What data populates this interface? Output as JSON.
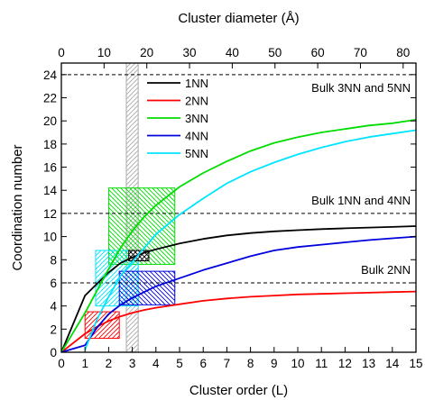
{
  "chart_data": {
    "type": "line",
    "xlabel": "Cluster order (L)",
    "ylabel": "Coordination number",
    "x2label": "Cluster diameter (Å)",
    "xlim": [
      0,
      15
    ],
    "ylim": [
      0,
      25
    ],
    "x2lim": [
      0,
      83
    ],
    "xticks": [
      0,
      1,
      2,
      3,
      4,
      5,
      6,
      7,
      8,
      9,
      10,
      11,
      12,
      13,
      14,
      15
    ],
    "yticks": [
      0,
      2,
      4,
      6,
      8,
      10,
      12,
      14,
      16,
      18,
      20,
      22,
      24
    ],
    "x2ticks": [
      0,
      10,
      20,
      30,
      40,
      50,
      60,
      70,
      80
    ],
    "grid": false,
    "legend_position": "top-center",
    "series": [
      {
        "name": "1NN",
        "color": "#000000",
        "x": [
          0,
          1,
          1.5,
          2,
          2.5,
          3,
          3.5,
          4,
          5,
          6,
          7,
          8,
          9,
          10,
          11,
          12,
          13,
          14,
          15
        ],
        "y": [
          0,
          4.9,
          5.9,
          6.9,
          7.7,
          8.2,
          8.6,
          8.9,
          9.4,
          9.8,
          10.1,
          10.3,
          10.45,
          10.55,
          10.65,
          10.72,
          10.78,
          10.83,
          10.9
        ]
      },
      {
        "name": "2NN",
        "color": "#ff0000",
        "x": [
          0,
          1,
          1.5,
          2,
          2.5,
          3,
          3.5,
          4,
          5,
          6,
          7,
          8,
          9,
          10,
          11,
          12,
          13,
          14,
          15
        ],
        "y": [
          0,
          1.6,
          2.2,
          2.7,
          3.1,
          3.4,
          3.65,
          3.85,
          4.15,
          4.45,
          4.65,
          4.8,
          4.9,
          5.0,
          5.05,
          5.1,
          5.15,
          5.2,
          5.25
        ]
      },
      {
        "name": "3NN",
        "color": "#00dd00",
        "x": [
          0,
          1,
          1.5,
          2,
          2.5,
          3,
          3.5,
          4,
          5,
          6,
          7,
          8,
          9,
          10,
          11,
          12,
          13,
          14,
          15
        ],
        "y": [
          0,
          3.4,
          5.3,
          7.2,
          9.0,
          10.5,
          11.7,
          12.7,
          14.3,
          15.5,
          16.5,
          17.4,
          18.1,
          18.6,
          19.0,
          19.3,
          19.6,
          19.8,
          20.1
        ]
      },
      {
        "name": "4NN",
        "color": "#0000dd",
        "x": [
          0,
          1,
          1.5,
          2,
          2.5,
          3,
          3.5,
          4,
          5,
          6,
          7,
          8,
          9,
          10,
          11,
          12,
          13,
          14,
          15
        ],
        "y": [
          0,
          0.6,
          2.1,
          3.3,
          4.1,
          4.7,
          5.2,
          5.7,
          6.4,
          7.1,
          7.7,
          8.3,
          8.8,
          9.1,
          9.3,
          9.5,
          9.7,
          9.85,
          10.0
        ]
      },
      {
        "name": "5NN",
        "color": "#00e5ff",
        "x": [
          1,
          1.5,
          2,
          2.5,
          3,
          3.5,
          4,
          5,
          6,
          7,
          8,
          9,
          10,
          11,
          12,
          13,
          14,
          15
        ],
        "y": [
          0.2,
          2.8,
          4.8,
          6.6,
          7.8,
          9.0,
          10.2,
          11.9,
          13.3,
          14.6,
          15.6,
          16.4,
          17.1,
          17.7,
          18.2,
          18.6,
          18.9,
          19.2
        ]
      }
    ],
    "reference_lines": [
      {
        "y": 24,
        "label": "Bulk 3NN and 5NN"
      },
      {
        "y": 12,
        "label": "Bulk 1NN and 4NN"
      },
      {
        "y": 6,
        "label": "Bulk 2NN"
      }
    ],
    "hatched_regions": [
      {
        "x0": 2.75,
        "x1": 3.25,
        "y0": 0,
        "y1": 25,
        "color": "#aaaaaa",
        "pattern": "diag-up"
      },
      {
        "x0": 1.0,
        "x1": 2.45,
        "y0": 1.2,
        "y1": 3.5,
        "color": "#ff0000",
        "pattern": "diag-up"
      },
      {
        "x0": 2.0,
        "x1": 4.8,
        "y0": 7.6,
        "y1": 14.2,
        "color": "#00dd00",
        "pattern": "diag-down"
      },
      {
        "x0": 1.45,
        "x1": 3.25,
        "y0": 4.0,
        "y1": 8.8,
        "color": "#00e5ff",
        "pattern": "diag-up"
      },
      {
        "x0": 2.45,
        "x1": 4.8,
        "y0": 4.1,
        "y1": 7.0,
        "color": "#0000dd",
        "pattern": "diag-down"
      },
      {
        "x0": 2.85,
        "x1": 3.7,
        "y0": 7.9,
        "y1": 8.8,
        "color": "#000000",
        "pattern": "cross"
      }
    ]
  }
}
